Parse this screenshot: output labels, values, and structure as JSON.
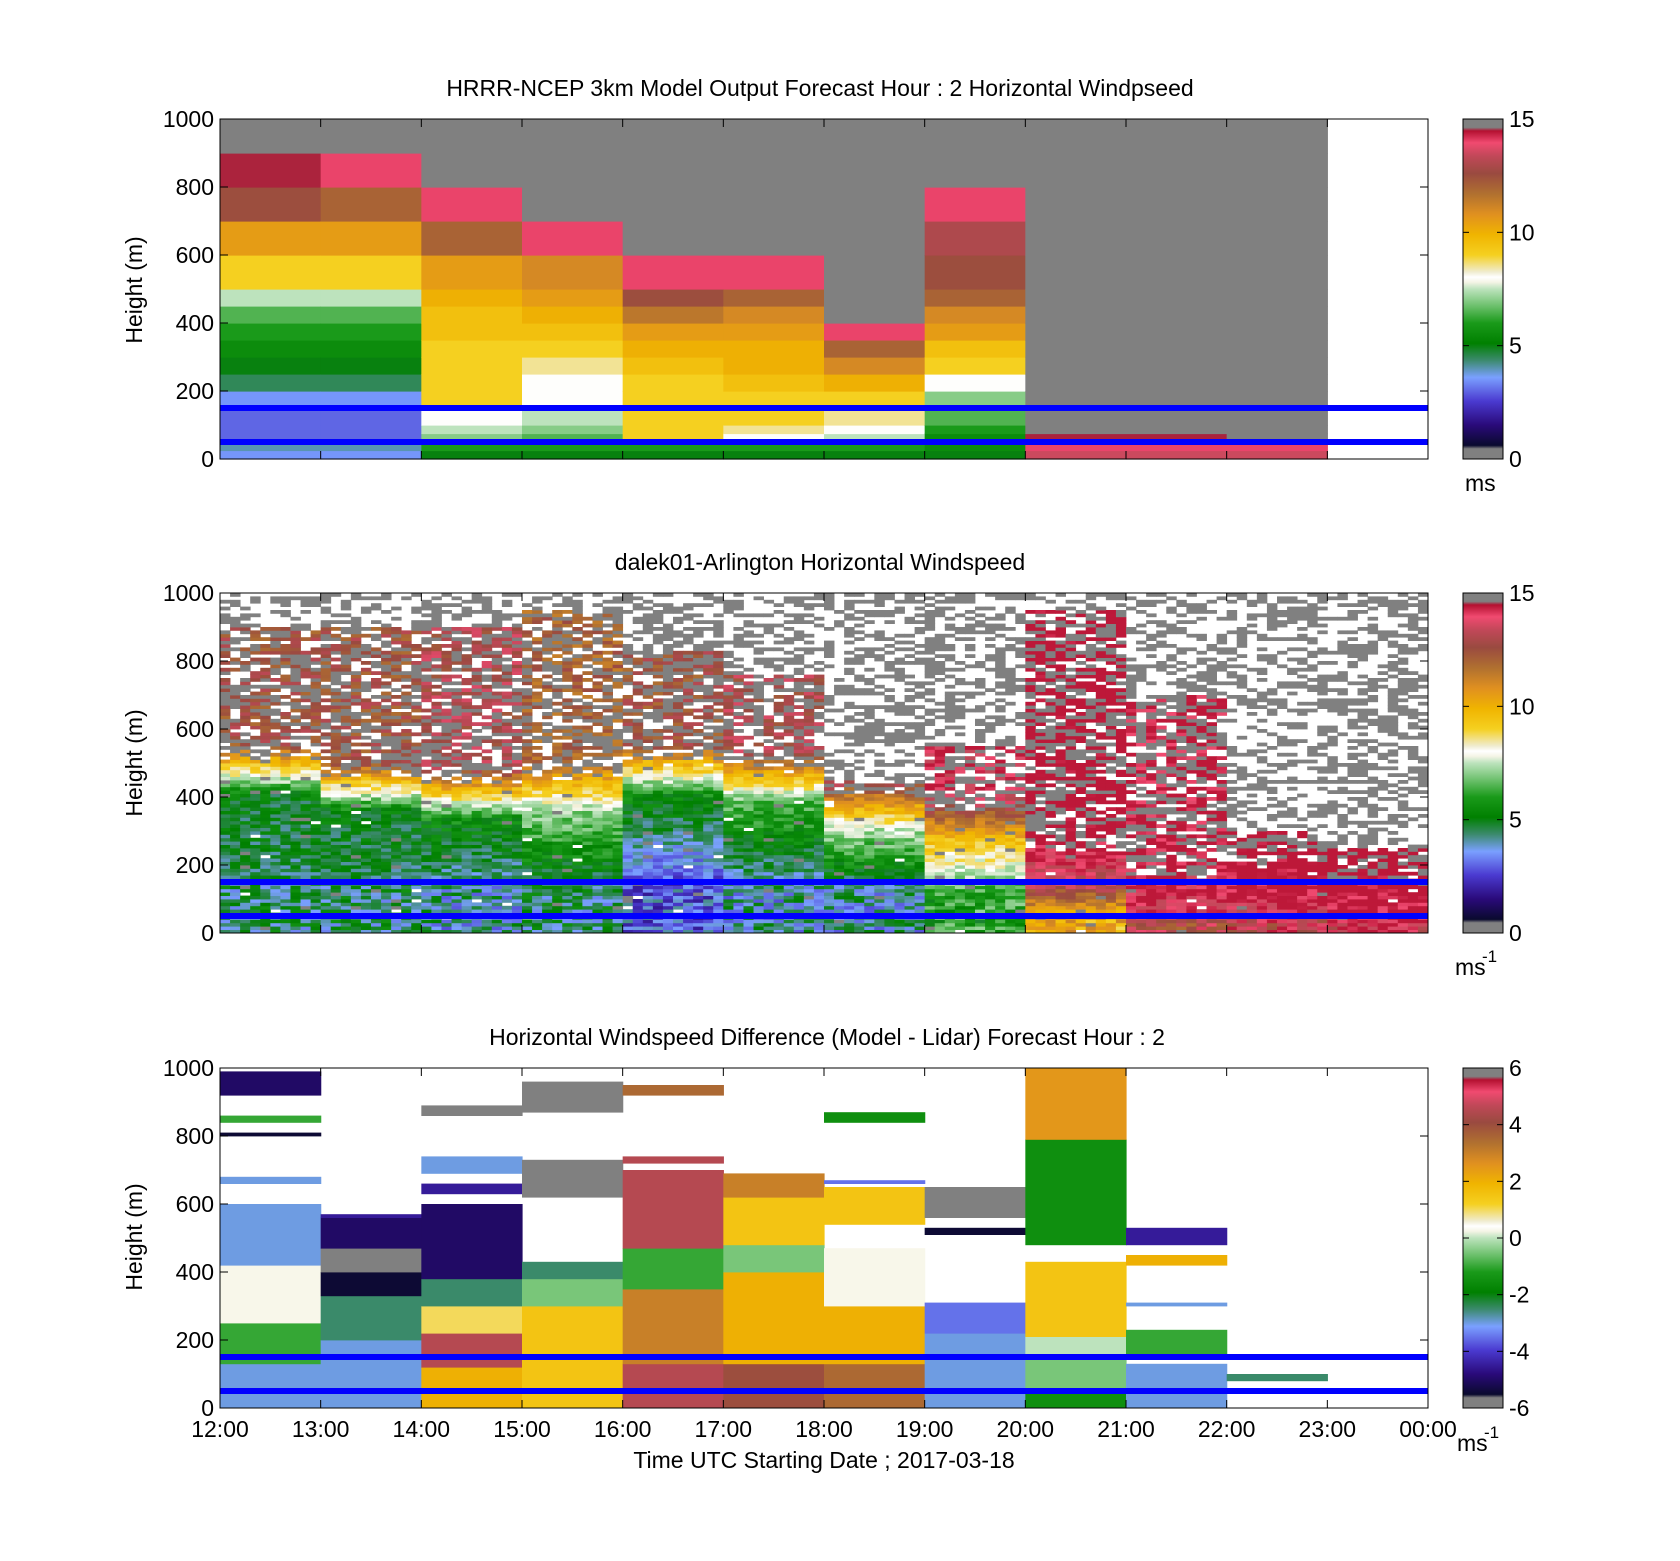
{
  "figure": {
    "x_tick_labels": [
      "12:00",
      "13:00",
      "14:00",
      "15:00",
      "16:00",
      "17:00",
      "18:00",
      "19:00",
      "20:00",
      "21:00",
      "22:00",
      "23:00",
      "00:00"
    ],
    "x_label": "Time UTC  Starting Date ; 2017-03-18",
    "y_label": "Height (m)",
    "y_tick_labels": [
      "0",
      "200",
      "400",
      "600",
      "800",
      "1000"
    ],
    "blue_lines_m": [
      50,
      150
    ],
    "colors": {
      "missing_gray": "#808080",
      "line_blue": "#0000ff",
      "background": "#ffffff"
    }
  },
  "chart_data": [
    {
      "type": "heatmap",
      "title": "HRRR-NCEP 3km Model Output   Forecast Hour : 2 Horizontal Windpseed",
      "ylabel": "Height (m)",
      "ylim": [
        0,
        1000
      ],
      "xlim": [
        "12:00",
        "00:00"
      ],
      "colorbar": {
        "min": 0,
        "max": 15,
        "ticks": [
          "0",
          "5",
          "10",
          "15"
        ],
        "unit": "ms"
      },
      "columns_note": "Hourly model profiles, speed in m/s per height band; null = no data (gray)",
      "levels_m": [
        0,
        25,
        50,
        75,
        100,
        150,
        200,
        250,
        300,
        350,
        400,
        450,
        500,
        600,
        700,
        800,
        900,
        1000
      ],
      "profiles": [
        {
          "hour": "12:00",
          "speed": [
            3.5,
            4,
            3,
            3,
            3,
            3.5,
            4.5,
            5,
            5.5,
            6,
            6.5,
            7.5,
            9,
            10.5,
            12.5,
            14.5,
            null
          ]
        },
        {
          "hour": "13:00",
          "speed": [
            3.5,
            4,
            3,
            3,
            3,
            3.5,
            4.5,
            5,
            5.5,
            6,
            6.5,
            7.5,
            9,
            10.5,
            12,
            14,
            15
          ]
        },
        {
          "hour": "14:00",
          "speed": [
            5,
            6,
            7,
            7.5,
            8,
            9,
            9,
            9,
            9,
            9.5,
            9.5,
            10,
            10.5,
            12,
            14,
            15,
            null
          ]
        },
        {
          "hour": "15:00",
          "speed": [
            5,
            6,
            6.5,
            7,
            7.5,
            8,
            8,
            8.5,
            9,
            9.5,
            10,
            10.5,
            11,
            14,
            15,
            null,
            null
          ]
        },
        {
          "hour": "16:00",
          "speed": [
            5,
            6,
            9,
            9,
            9,
            9,
            9,
            9.5,
            10,
            10.5,
            11.5,
            12.5,
            14,
            null,
            null,
            null,
            null
          ]
        },
        {
          "hour": "17:00",
          "speed": [
            5,
            6,
            8,
            8.5,
            9,
            9,
            9.5,
            10,
            10,
            10.5,
            11,
            12,
            14,
            null,
            null,
            null,
            null
          ]
        },
        {
          "hour": "18:00",
          "speed": [
            5,
            6,
            7.5,
            8,
            8.5,
            9,
            10,
            11,
            12,
            14,
            null,
            null,
            null,
            null,
            null,
            null,
            null
          ]
        },
        {
          "hour": "19:00",
          "speed": [
            5,
            5.5,
            5.5,
            6,
            6.5,
            7,
            8,
            9,
            9.5,
            10.5,
            11,
            12,
            12.5,
            13,
            14,
            15,
            null
          ]
        },
        {
          "hour": "20:00",
          "speed": [
            13.5,
            14,
            14.5,
            15,
            null,
            null,
            null,
            null,
            null,
            null,
            null,
            null,
            null,
            null,
            null,
            null,
            null
          ]
        },
        {
          "hour": "21:00",
          "speed": [
            13.5,
            14,
            14.5,
            null,
            null,
            null,
            null,
            null,
            null,
            null,
            null,
            null,
            null,
            null,
            null,
            null,
            null
          ]
        },
        {
          "hour": "22:00",
          "speed": [
            13.5,
            14,
            null,
            null,
            null,
            null,
            null,
            null,
            null,
            null,
            null,
            null,
            null,
            null,
            null,
            null,
            null
          ]
        }
      ]
    },
    {
      "type": "heatmap",
      "title": "dalek01-Arlington  Horizontal Windspeed",
      "ylabel": "Height (m)",
      "ylim": [
        0,
        1000
      ],
      "xlim": [
        "12:00",
        "00:00"
      ],
      "colorbar": {
        "min": 0,
        "max": 15,
        "ticks": [
          "0",
          "5",
          "10",
          "15"
        ],
        "unit": "ms-1"
      },
      "columns_note": "Approximate lidar windspeed; mixing-layer top (m) and speed (m/s) in low / middle / upper layer per hour",
      "profiles": [
        {
          "hour": "12:00",
          "low": 4.5,
          "mid": 5,
          "top": 12.5,
          "ml_top_m": 400,
          "data_top_m": 900
        },
        {
          "hour": "13:00",
          "low": 4.5,
          "mid": 5,
          "top": 12.5,
          "ml_top_m": 350,
          "data_top_m": 900
        },
        {
          "hour": "14:00",
          "low": 4,
          "mid": 5.5,
          "top": 13,
          "ml_top_m": 330,
          "data_top_m": 900
        },
        {
          "hour": "15:00",
          "low": 4.5,
          "mid": 7,
          "top": 12,
          "ml_top_m": 350,
          "data_top_m": 950
        },
        {
          "hour": "16:00",
          "low": 3,
          "mid": 5.5,
          "top": 12.5,
          "ml_top_m": 400,
          "data_top_m": 830
        },
        {
          "hour": "17:00",
          "low": 4,
          "mid": 6.5,
          "top": 13,
          "ml_top_m": 380,
          "data_top_m": 760
        },
        {
          "hour": "18:00",
          "low": 4,
          "mid": 7.5,
          "top": 13.5,
          "ml_top_m": 300,
          "data_top_m": 450
        },
        {
          "hour": "19:00",
          "low": 6,
          "mid": 9,
          "top": 14,
          "ml_top_m": 250,
          "data_top_m": 550
        },
        {
          "hour": "20:00",
          "low": 10,
          "mid": 13,
          "top": 15,
          "ml_top_m": 130,
          "data_top_m": 950
        },
        {
          "hour": "21:00",
          "low": 13,
          "mid": 14,
          "top": 14.5,
          "ml_top_m": 60,
          "data_top_m": 700
        },
        {
          "hour": "22:00",
          "low": 13.5,
          "mid": 14.5,
          "top": 15,
          "ml_top_m": 100,
          "data_top_m": 300
        },
        {
          "hour": "23:00",
          "low": 14,
          "mid": 14.5,
          "top": 15,
          "ml_top_m": 50,
          "data_top_m": 250
        }
      ]
    },
    {
      "type": "heatmap",
      "title": "Horizontal Windspeed Difference (Model - Lidar) Forecast Hour : 2",
      "xlabel": "Time UTC  Starting Date ; 2017-03-18",
      "ylabel": "Height (m)",
      "ylim": [
        0,
        1000
      ],
      "xlim": [
        "12:00",
        "00:00"
      ],
      "colorbar": {
        "min": -6,
        "max": 6,
        "ticks": [
          "-6",
          "-4",
          "-2",
          "0",
          "2",
          "4",
          "6"
        ],
        "unit": "ms-1"
      },
      "columns_note": "Approximate difference bands [from_m, to_m, value_m/s] per hour",
      "profiles": [
        {
          "hour": "12:00",
          "bands": [
            [
              0,
              130,
              -3
            ],
            [
              130,
              250,
              -1
            ],
            [
              250,
              420,
              0.5
            ],
            [
              420,
              600,
              -3
            ],
            [
              660,
              680,
              -3
            ],
            [
              800,
              810,
              -6
            ],
            [
              840,
              860,
              -1
            ],
            [
              920,
              990,
              -5
            ]
          ]
        },
        {
          "hour": "13:00",
          "bands": [
            [
              0,
              200,
              -3
            ],
            [
              200,
              330,
              -2.5
            ],
            [
              330,
              400,
              -5.5
            ],
            [
              400,
              470,
              null
            ],
            [
              470,
              560,
              -5
            ],
            [
              560,
              570,
              -4.5
            ]
          ]
        },
        {
          "hour": "14:00",
          "bands": [
            [
              0,
              120,
              2
            ],
            [
              120,
              220,
              4.5
            ],
            [
              220,
              300,
              1
            ],
            [
              300,
              380,
              -2.5
            ],
            [
              380,
              600,
              -5
            ],
            [
              630,
              660,
              -4.5
            ],
            [
              690,
              740,
              -3
            ],
            [
              860,
              890,
              null
            ]
          ]
        },
        {
          "hour": "15:00",
          "bands": [
            [
              0,
              300,
              1.5
            ],
            [
              300,
              380,
              -0.5
            ],
            [
              380,
              430,
              -2.5
            ],
            [
              620,
              730,
              null
            ],
            [
              870,
              960,
              null
            ]
          ]
        },
        {
          "hour": "16:00",
          "bands": [
            [
              0,
              130,
              4.5
            ],
            [
              130,
              350,
              3
            ],
            [
              350,
              470,
              -1
            ],
            [
              470,
              700,
              4.5
            ],
            [
              720,
              740,
              4.5
            ],
            [
              920,
              950,
              3.5
            ]
          ]
        },
        {
          "hour": "17:00",
          "bands": [
            [
              0,
              130,
              4
            ],
            [
              130,
              400,
              2
            ],
            [
              400,
              480,
              -0.5
            ],
            [
              480,
              620,
              1.5
            ],
            [
              620,
              690,
              3
            ]
          ]
        },
        {
          "hour": "18:00",
          "bands": [
            [
              0,
              130,
              3.5
            ],
            [
              130,
              300,
              2
            ],
            [
              300,
              470,
              0.5
            ],
            [
              540,
              650,
              1.5
            ],
            [
              660,
              670,
              -3.5
            ],
            [
              840,
              870,
              -1.5
            ]
          ]
        },
        {
          "hour": "19:00",
          "bands": [
            [
              0,
              220,
              -3
            ],
            [
              220,
              310,
              -3.5
            ],
            [
              510,
              530,
              -6
            ],
            [
              560,
              650,
              null
            ]
          ]
        },
        {
          "hour": "20:00",
          "bands": [
            [
              0,
              50,
              -1.5
            ],
            [
              50,
              150,
              -0.5
            ],
            [
              150,
              210,
              0
            ],
            [
              210,
              430,
              1.5
            ],
            [
              480,
              790,
              -1.5
            ],
            [
              790,
              1000,
              2.5
            ]
          ]
        },
        {
          "hour": "21:00",
          "bands": [
            [
              0,
              130,
              -3
            ],
            [
              150,
              230,
              -1
            ],
            [
              300,
              310,
              -3
            ],
            [
              420,
              450,
              2
            ],
            [
              480,
              530,
              -4.5
            ]
          ]
        },
        {
          "hour": "22:00",
          "bands": [
            [
              80,
              100,
              -2.5
            ]
          ]
        }
      ]
    }
  ]
}
